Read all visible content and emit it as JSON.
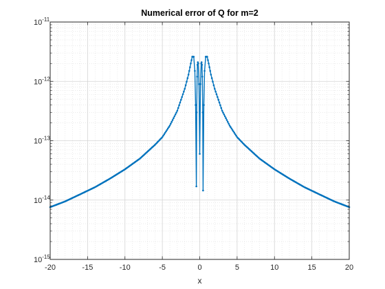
{
  "chart_data": {
    "type": "line",
    "title": "Numerical error of Q for m=2",
    "xlabel": "x",
    "ylabel": "",
    "xlim": [
      -20,
      20
    ],
    "ylim": [
      1e-15,
      1e-11
    ],
    "yscale": "log",
    "grid": true,
    "minor_grid": true,
    "xticks": [
      "-20",
      "-15",
      "-10",
      "-5",
      "0",
      "5",
      "10",
      "15",
      "20"
    ],
    "yticks": [
      {
        "base": "10",
        "exp": "-15"
      },
      {
        "base": "10",
        "exp": "-14"
      },
      {
        "base": "10",
        "exp": "-13"
      },
      {
        "base": "10",
        "exp": "-12"
      },
      {
        "base": "10",
        "exp": "-11"
      }
    ],
    "line_color": "#0072BD",
    "series": [
      {
        "name": "",
        "marker": "dot",
        "x": [
          -20,
          -18,
          -16,
          -14,
          -12,
          -10,
          -8,
          -6,
          -5,
          -4,
          -3,
          -2,
          -1.5,
          -1.2,
          -1.0,
          -0.8,
          -0.65,
          -0.55,
          -0.45,
          -0.4,
          -0.35,
          -0.3,
          -0.25,
          -0.2,
          -0.1,
          0,
          0.1,
          0.2,
          0.25,
          0.3,
          0.35,
          0.4,
          0.45,
          0.55,
          0.65,
          0.8,
          1.0,
          1.2,
          1.5,
          2,
          3,
          4,
          5,
          6,
          8,
          10,
          12,
          14,
          16,
          18,
          20
        ],
        "y": [
          7.6e-15,
          9.5e-15,
          1.25e-14,
          1.65e-14,
          2.3e-14,
          3.3e-14,
          5e-14,
          8.5e-14,
          1.15e-13,
          1.8e-13,
          3.2e-13,
          7.5e-13,
          1.3e-12,
          2e-12,
          2.6e-12,
          2.6e-12,
          1.5e-12,
          4e-13,
          1.7e-14,
          3e-13,
          1.2e-12,
          1.9e-12,
          2.1e-12,
          2e-12,
          9e-13,
          6e-14,
          9e-13,
          2e-12,
          2.1e-12,
          1.9e-12,
          1.2e-12,
          3e-13,
          1.45e-14,
          4e-13,
          1.5e-12,
          2.6e-12,
          2.6e-12,
          2e-12,
          1.3e-12,
          7.5e-13,
          3.2e-13,
          1.8e-13,
          1.15e-13,
          8.5e-14,
          5e-14,
          3.3e-14,
          2.3e-14,
          1.65e-14,
          1.25e-14,
          9.5e-15,
          7.6e-15
        ]
      }
    ]
  }
}
